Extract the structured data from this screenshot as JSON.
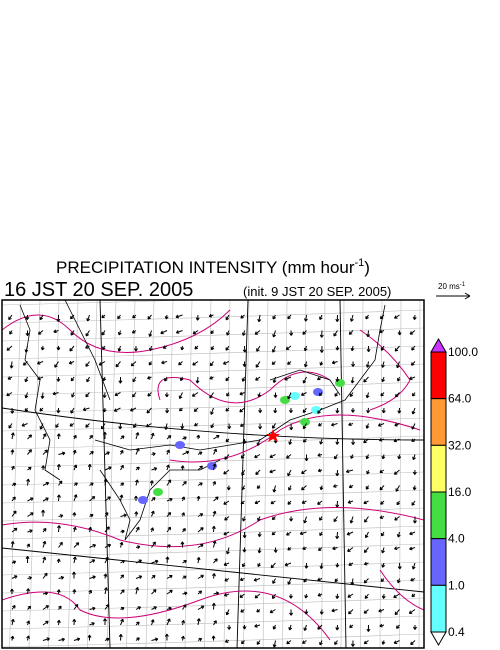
{
  "header": {
    "title": {
      "main": "PRECIPITATION INTENSITY (mm hour",
      "sup": "-1",
      "end": ")"
    },
    "valid_time": "16 JST 20 SEP. 2005",
    "init_time": "(init. 9 JST 20 SEP. 2005)"
  },
  "vector_key": {
    "label": "20 ms",
    "sup": "-1"
  },
  "colorbar": {
    "labels": [
      "100.0",
      "64.0",
      "32.0",
      "16.0",
      "4.0",
      "1.0",
      "0.4"
    ],
    "colors": [
      "#ff0000",
      "#ff9933",
      "#ffff66",
      "#44dd44",
      "#6666ff",
      "#66ffff"
    ],
    "over_color": "#cc33ff",
    "under_color": "#ffffff"
  }
}
